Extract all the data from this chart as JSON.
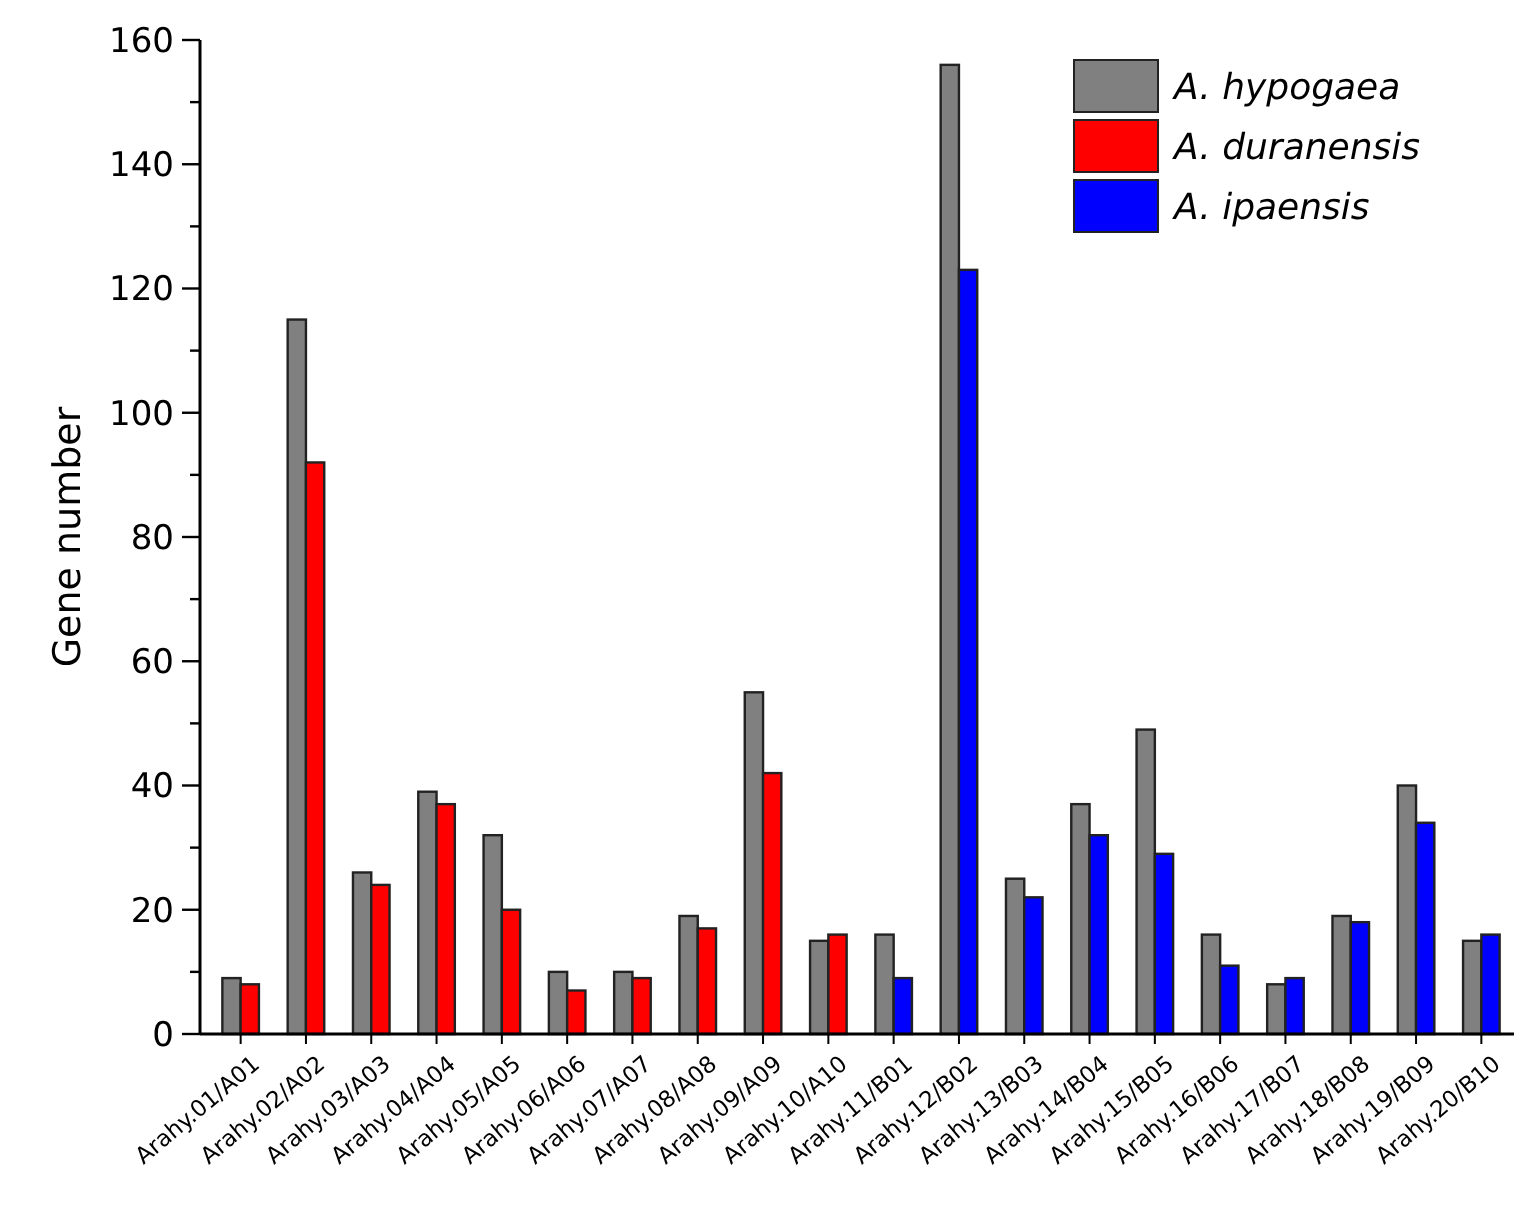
{
  "chart_data": {
    "type": "bar",
    "ylabel": "Gene number",
    "categories": [
      "Arahy.01/A01",
      "Arahy.02/A02",
      "Arahy.03/A03",
      "Arahy.04/A04",
      "Arahy.05/A05",
      "Arahy.06/A06",
      "Arahy.07/A07",
      "Arahy.08/A08",
      "Arahy.09/A09",
      "Arahy.10/A10",
      "Arahy.11/B01",
      "Arahy.12/B02",
      "Arahy.13/B03",
      "Arahy.14/B04",
      "Arahy.15/B05",
      "Arahy.16/B06",
      "Arahy.17/B07",
      "Arahy.18/B08",
      "Arahy.19/B09",
      "Arahy.20/B10"
    ],
    "series": [
      {
        "name": "A. hypogaea",
        "color": "#808080",
        "values": [
          9,
          115,
          26,
          39,
          32,
          10,
          10,
          19,
          55,
          15,
          16,
          156,
          25,
          37,
          49,
          16,
          8,
          19,
          40,
          15
        ]
      },
      {
        "name": "A. duranensis",
        "color": "#ff0000",
        "values": [
          8,
          92,
          24,
          37,
          20,
          7,
          9,
          17,
          42,
          16,
          null,
          null,
          null,
          null,
          null,
          null,
          null,
          null,
          null,
          null
        ]
      },
      {
        "name": "A. ipaensis",
        "color": "#0000ff",
        "values": [
          null,
          null,
          null,
          null,
          null,
          null,
          null,
          null,
          null,
          null,
          9,
          123,
          22,
          32,
          29,
          11,
          9,
          18,
          34,
          16
        ]
      }
    ],
    "ylim": [
      0,
      160
    ],
    "yticks": [
      0,
      {
        "value": 10,
        "label": null
      },
      20,
      {
        "value": 30,
        "label": null
      },
      40,
      {
        "value": 50,
        "label": null
      },
      60,
      {
        "value": 70,
        "label": null
      },
      80,
      {
        "value": 90,
        "label": null
      },
      100,
      {
        "value": 110,
        "label": null
      },
      120,
      {
        "value": 130,
        "label": null
      },
      140,
      {
        "value": 150,
        "label": null
      },
      160
    ],
    "grid": false,
    "legend": "top right"
  }
}
